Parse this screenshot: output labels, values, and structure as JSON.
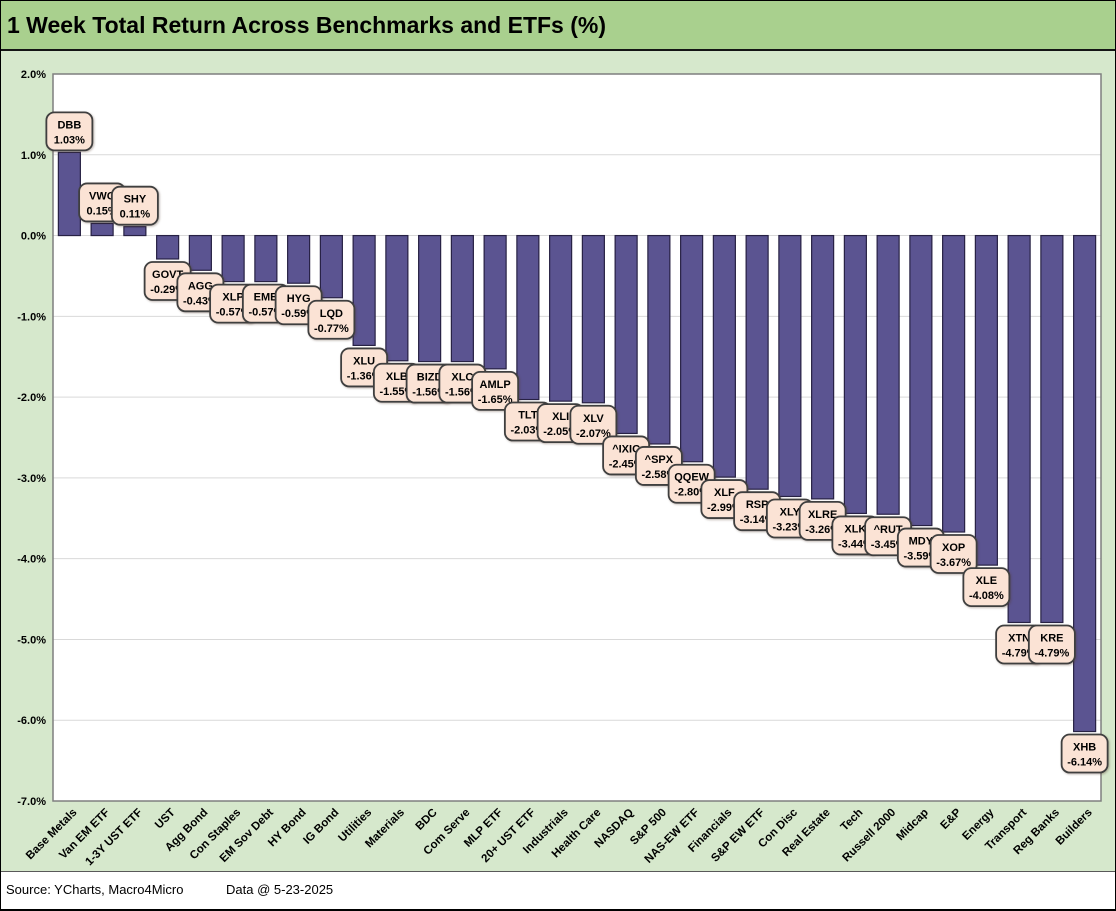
{
  "title": "1 Week Total Return Across Benchmarks and ETFs (%)",
  "footer": {
    "source": "Source: YCharts, Macro4Micro",
    "data_date": "Data @ 5-23-2025"
  },
  "chart_data": {
    "type": "bar",
    "title": "1 Week Total Return Across Benchmarks and ETFs (%)",
    "xlabel": "",
    "ylabel": "",
    "ylim": [
      -7.0,
      2.0
    ],
    "grid": true,
    "legend": "none",
    "ytick_labels": [
      "2.0%",
      "1.0%",
      "0.0%",
      "-1.0%",
      "-2.0%",
      "-3.0%",
      "-4.0%",
      "-5.0%",
      "-6.0%",
      "-7.0%"
    ],
    "categories": [
      "Base Metals",
      "Van EM ETF",
      "1-3Y UST ETF",
      "UST",
      "Agg Bond",
      "Con Staples",
      "EM Sov Debt",
      "HY Bond",
      "IG Bond",
      "Utilities",
      "Materials",
      "BDC",
      "Com Serve",
      "MLP ETF",
      "20+ UST ETF",
      "Industrials",
      "Health Care",
      "NASDAQ",
      "S&P 500",
      "NAS-EW ETF",
      "Financials",
      "S&P EW ETF",
      "Con Disc",
      "Real Estate",
      "Tech",
      "Russell 2000",
      "Midcap",
      "E&P",
      "Energy",
      "Transport",
      "Reg Banks",
      "Builders"
    ],
    "tickers": [
      "DBB",
      "VWO",
      "SHY",
      "GOVT",
      "AGG",
      "XLP",
      "EMB",
      "HYG",
      "LQD",
      "XLU",
      "XLB",
      "BIZD",
      "XLC",
      "AMLP",
      "TLT",
      "XLI",
      "XLV",
      "^IXIC",
      "^SPX",
      "QQEW",
      "XLF",
      "RSP",
      "XLY",
      "XLRE",
      "XLK",
      "^RUT",
      "MDY",
      "XOP",
      "XLE",
      "XTN",
      "KRE",
      "XHB"
    ],
    "values": [
      1.03,
      0.15,
      0.11,
      -0.29,
      -0.43,
      -0.57,
      -0.57,
      -0.59,
      -0.77,
      -1.36,
      -1.55,
      -1.56,
      -1.56,
      -1.65,
      -2.03,
      -2.05,
      -2.07,
      -2.45,
      -2.58,
      -2.8,
      -2.99,
      -3.14,
      -3.23,
      -3.26,
      -3.44,
      -3.45,
      -3.59,
      -3.67,
      -4.08,
      -4.79,
      -4.79,
      -6.14
    ],
    "value_labels": [
      "1.03%",
      "0.15%",
      "0.11%",
      "-0.29%",
      "-0.43%",
      "-0.57%",
      "-0.57%",
      "-0.59%",
      "-0.77%",
      "-1.36%",
      "-1.55%",
      "-1.56%",
      "-1.56%",
      "-1.65%",
      "-2.03%",
      "-2.05%",
      "-2.07%",
      "-2.45%",
      "-2.58%",
      "-2.80%",
      "-2.99%",
      "-3.14%",
      "-3.23%",
      "-3.26%",
      "-3.44%",
      "-3.45%",
      "-3.59%",
      "-3.67%",
      "-4.08%",
      "-4.79%",
      "-4.79%",
      "-6.14%"
    ],
    "colors": {
      "bar_fill": "#5b5491",
      "bar_border": "#272144",
      "callout_fill": "#fbe3d5",
      "callout_border": "#3f3f3f",
      "title_band": "#a9d08e",
      "background": "#d6e8cc",
      "plot_bg": "#ffffff",
      "plot_border": "#7f7f7f",
      "gridline": "#d9d9d9",
      "text": "#000000"
    }
  }
}
